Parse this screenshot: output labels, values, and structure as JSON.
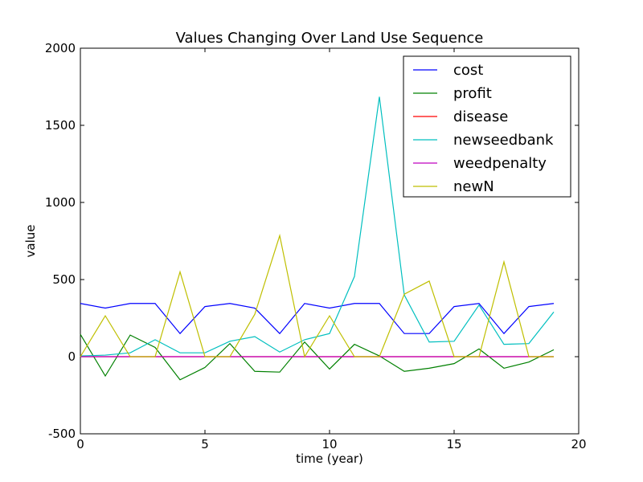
{
  "chart_data": {
    "type": "line",
    "title": "Values Changing Over Land Use Sequence",
    "xlabel": "time (year)",
    "ylabel": "value",
    "xlim": [
      0,
      20
    ],
    "ylim": [
      -500,
      2000
    ],
    "xticks": [
      0,
      5,
      10,
      15,
      20
    ],
    "yticks": [
      -500,
      0,
      500,
      1000,
      1500,
      2000
    ],
    "grid": false,
    "legend_position": "top-right",
    "x": [
      0,
      1,
      2,
      3,
      4,
      5,
      6,
      7,
      8,
      9,
      10,
      11,
      12,
      13,
      14,
      15,
      16,
      17,
      18,
      19
    ],
    "series": [
      {
        "name": "cost",
        "color": "#0000ff",
        "values": [
          345,
          315,
          345,
          345,
          150,
          325,
          345,
          315,
          150,
          345,
          315,
          345,
          345,
          150,
          150,
          325,
          345,
          150,
          325,
          345
        ]
      },
      {
        "name": "profit",
        "color": "#008000",
        "values": [
          145,
          -125,
          140,
          60,
          -150,
          -70,
          85,
          -95,
          -100,
          95,
          -80,
          80,
          5,
          -95,
          -75,
          -45,
          50,
          -75,
          -35,
          45
        ]
      },
      {
        "name": "disease",
        "color": "#ff0000",
        "values": [
          0,
          0,
          0,
          0,
          0,
          0,
          0,
          0,
          0,
          0,
          0,
          0,
          0,
          0,
          0,
          0,
          0,
          0,
          0,
          0
        ]
      },
      {
        "name": "newseedbank",
        "color": "#00bfbf",
        "values": [
          5,
          10,
          25,
          110,
          25,
          25,
          100,
          130,
          30,
          110,
          150,
          520,
          1685,
          400,
          95,
          100,
          335,
          80,
          85,
          290
        ]
      },
      {
        "name": "weedpenalty",
        "color": "#bf00bf",
        "values": [
          0,
          0,
          0,
          0,
          0,
          0,
          0,
          0,
          0,
          0,
          0,
          0,
          0,
          0,
          0,
          0,
          0,
          0,
          0,
          0
        ]
      },
      {
        "name": "newN",
        "color": "#bfbf00",
        "values": [
          0,
          265,
          0,
          0,
          550,
          0,
          0,
          275,
          785,
          0,
          265,
          0,
          0,
          405,
          490,
          0,
          0,
          615,
          0,
          0
        ]
      }
    ]
  }
}
